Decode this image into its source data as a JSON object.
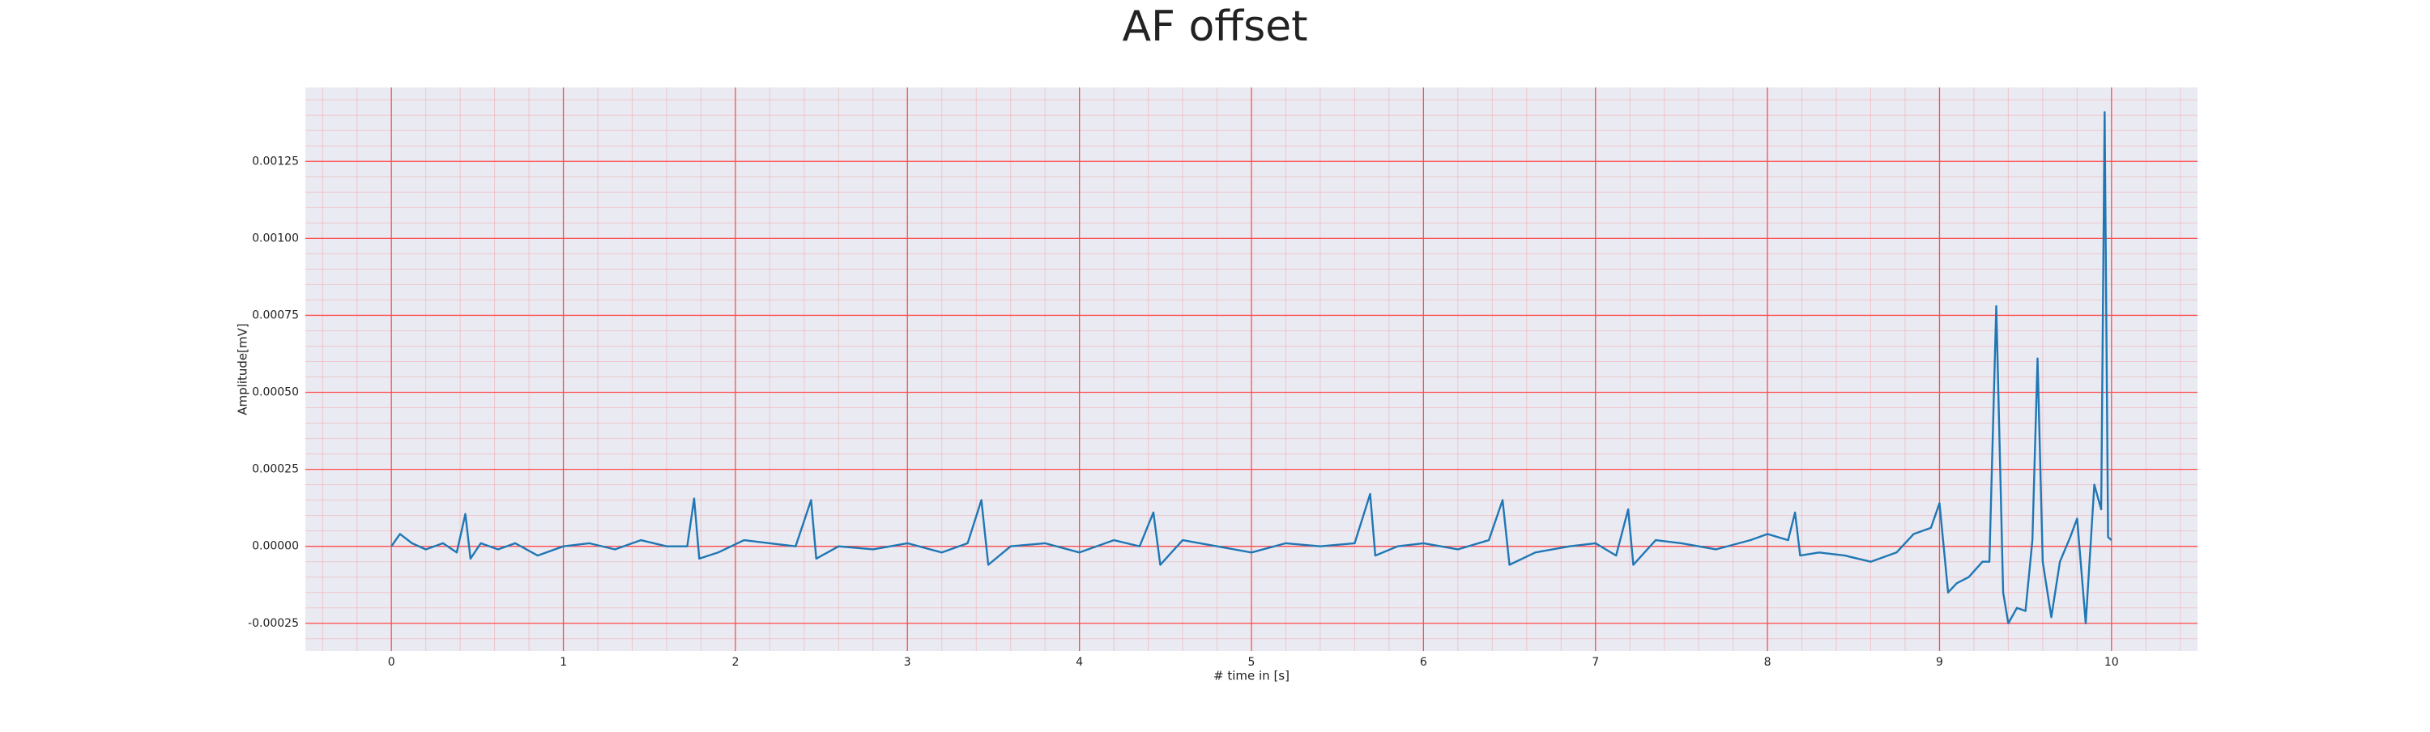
{
  "chart_data": {
    "type": "line",
    "title": "AF offset",
    "x_label": "# time in [s]",
    "y_label": "Amplitude[mV]",
    "color": "#1f77b4",
    "grid": true,
    "grid_color": "#ff4d4d",
    "minor_grid": true,
    "background": "#eaeaf2",
    "xlim": [
      -0.5,
      10.5
    ],
    "xticks": [
      0,
      1,
      2,
      3,
      4,
      5,
      6,
      7,
      8,
      9,
      10
    ],
    "ylim": [
      -0.00034,
      0.00149
    ],
    "yticks": [
      {
        "value": -0.00025,
        "label": "-0.00025"
      },
      {
        "value": 0,
        "label": "0.00000"
      },
      {
        "value": 0.00025,
        "label": "0.00025"
      },
      {
        "value": 0.0005,
        "label": "0.00050"
      },
      {
        "value": 0.00075,
        "label": "0.00075"
      },
      {
        "value": 0.001,
        "label": "0.00100"
      },
      {
        "value": 0.00125,
        "label": "0.00125"
      }
    ],
    "x": [
      0,
      0.05,
      0.12,
      0.2,
      0.3,
      0.38,
      0.43,
      0.46,
      0.52,
      0.62,
      0.72,
      0.85,
      1.0,
      1.15,
      1.3,
      1.45,
      1.6,
      1.72,
      1.76,
      1.79,
      1.9,
      2.05,
      2.2,
      2.35,
      2.44,
      2.47,
      2.6,
      2.8,
      3.0,
      3.2,
      3.35,
      3.43,
      3.47,
      3.6,
      3.8,
      4.0,
      4.2,
      4.35,
      4.43,
      4.47,
      4.6,
      4.8,
      5.0,
      5.2,
      5.4,
      5.6,
      5.69,
      5.72,
      5.85,
      6.0,
      6.2,
      6.38,
      6.46,
      6.5,
      6.65,
      6.85,
      7.0,
      7.12,
      7.19,
      7.22,
      7.35,
      7.5,
      7.7,
      7.9,
      8.0,
      8.12,
      8.16,
      8.19,
      8.3,
      8.45,
      8.6,
      8.75,
      8.85,
      8.95,
      9.0,
      9.05,
      9.1,
      9.17,
      9.25,
      9.29,
      9.33,
      9.37,
      9.4,
      9.45,
      9.5,
      9.54,
      9.57,
      9.6,
      9.65,
      9.7,
      9.76,
      9.8,
      9.85,
      9.9,
      9.94,
      9.96,
      9.98,
      10.0
    ],
    "values": [
      0,
      4e-05,
      1e-05,
      -1e-05,
      1e-05,
      -2e-05,
      0.000105,
      -4e-05,
      1e-05,
      -1e-05,
      1e-05,
      -3e-05,
      0,
      1e-05,
      -1e-05,
      2e-05,
      0,
      0,
      0.000155,
      -4e-05,
      -2e-05,
      2e-05,
      1e-05,
      0,
      0.00015,
      -4e-05,
      0,
      -1e-05,
      1e-05,
      -2e-05,
      1e-05,
      0.00015,
      -6e-05,
      0,
      1e-05,
      -2e-05,
      2e-05,
      0,
      0.00011,
      -6e-05,
      2e-05,
      0,
      -2e-05,
      1e-05,
      0,
      1e-05,
      0.00017,
      -3e-05,
      0,
      1e-05,
      -1e-05,
      2e-05,
      0.00015,
      -6e-05,
      -2e-05,
      0,
      1e-05,
      -3e-05,
      0.00012,
      -6e-05,
      2e-05,
      1e-05,
      -1e-05,
      2e-05,
      4e-05,
      2e-05,
      0.00011,
      -3e-05,
      -2e-05,
      -3e-05,
      -5e-05,
      -2e-05,
      4e-05,
      6e-05,
      0.00014,
      -0.00015,
      -0.00012,
      -0.0001,
      -5e-05,
      -5e-05,
      0.00078,
      -0.00015,
      -0.00025,
      -0.0002,
      -0.00021,
      2e-05,
      0.00061,
      -5e-05,
      -0.00023,
      -5e-05,
      3e-05,
      9e-05,
      -0.00025,
      0.0002,
      0.00012,
      0.00141,
      3e-05,
      2e-05
    ]
  }
}
